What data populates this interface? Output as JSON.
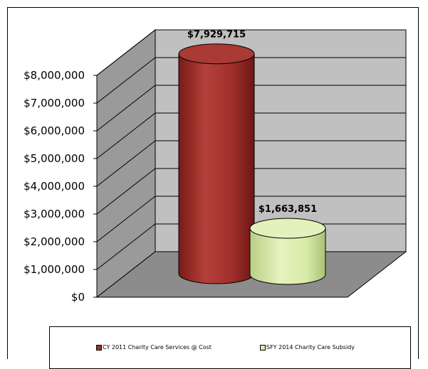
{
  "chart_data": {
    "type": "bar",
    "style": "3d-cylinder",
    "categories": [
      "CY 2011 Charity Care Services @ Cost",
      "SFY 2014 Charity Care Subsidy"
    ],
    "values": [
      7929715,
      1663851
    ],
    "data_labels": [
      "$7,929,715",
      "$1,663,851"
    ],
    "colors": [
      "#a0302c",
      "#d8eba8"
    ],
    "ylim": [
      0,
      8000000
    ],
    "yticks": [
      "$0",
      "$1,000,000",
      "$2,000,000",
      "$3,000,000",
      "$4,000,000",
      "$5,000,000",
      "$6,000,000",
      "$7,000,000",
      "$8,000,000"
    ],
    "grid": true,
    "legend_position": "bottom"
  },
  "legend": {
    "items": [
      {
        "label": "CY 2011 Charity Care Services @ Cost",
        "color": "#a0302c"
      },
      {
        "label": "SFY 2014 Charity Care Subsidy",
        "color": "#d8eba8"
      }
    ]
  }
}
